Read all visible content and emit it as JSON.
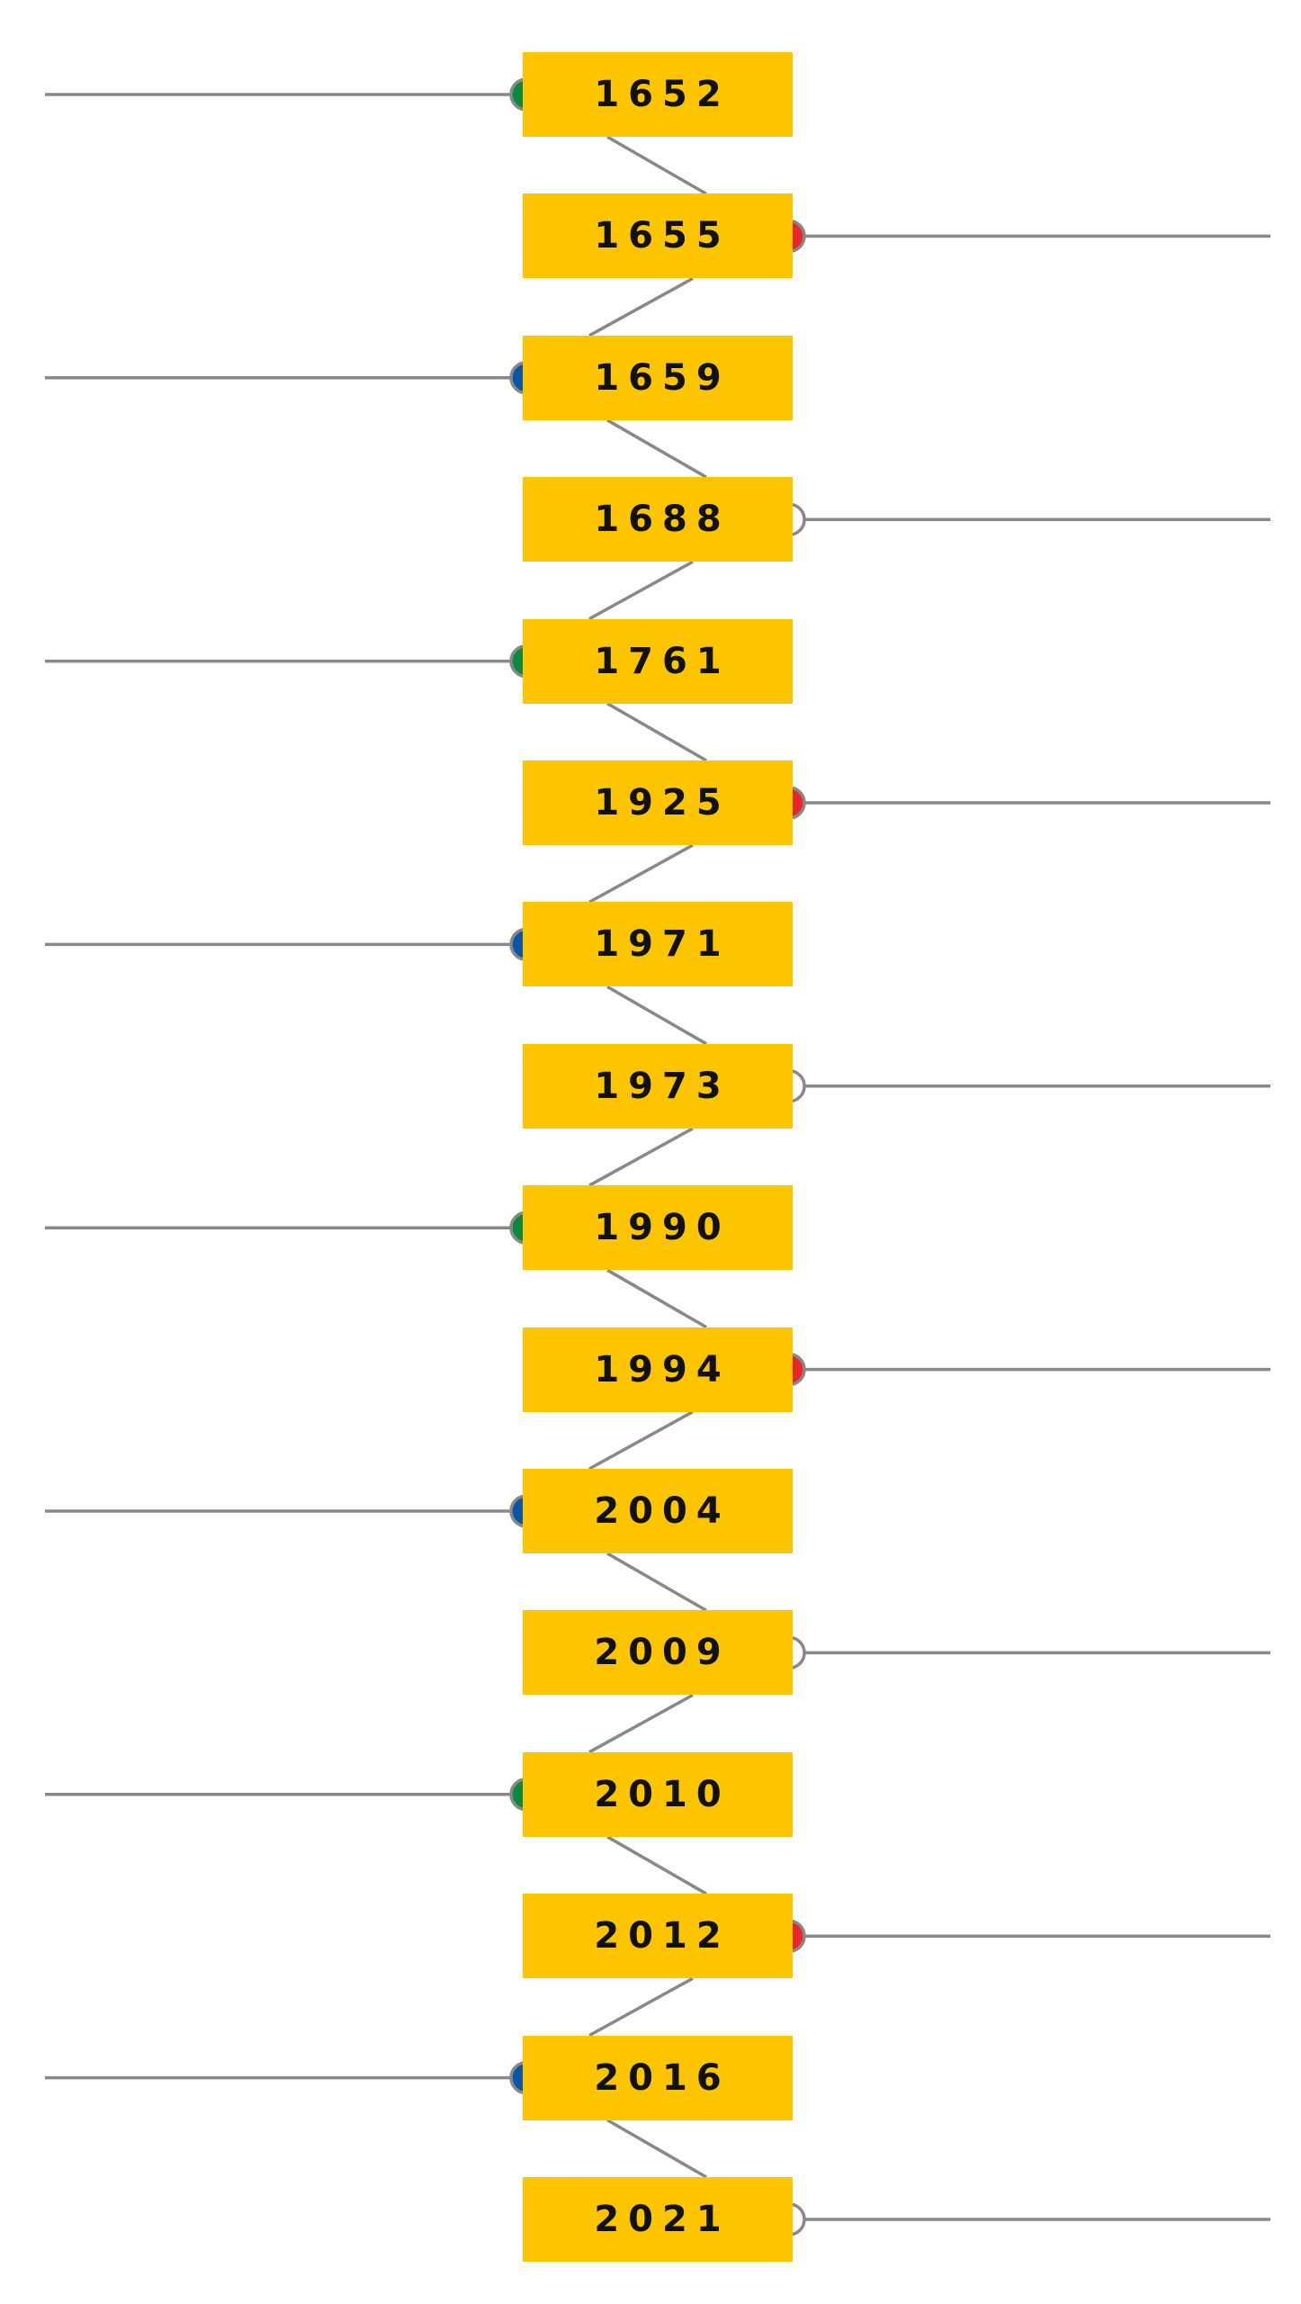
{
  "timeline": {
    "colors": {
      "box": "#fdc500",
      "line": "#888888",
      "text": "#111111"
    },
    "events": [
      {
        "year": "1652",
        "side": "left",
        "marker": "#0a8a3c"
      },
      {
        "year": "1655",
        "side": "right",
        "marker": "#e8262d"
      },
      {
        "year": "1659",
        "side": "left",
        "marker": "#0b55a6"
      },
      {
        "year": "1688",
        "side": "right",
        "marker": "#ffffff"
      },
      {
        "year": "1761",
        "side": "left",
        "marker": "#0a8a3c"
      },
      {
        "year": "1925",
        "side": "right",
        "marker": "#e8262d"
      },
      {
        "year": "1971",
        "side": "left",
        "marker": "#0b55a6"
      },
      {
        "year": "1973",
        "side": "right",
        "marker": "#ffffff"
      },
      {
        "year": "1990",
        "side": "left",
        "marker": "#0a8a3c"
      },
      {
        "year": "1994",
        "side": "right",
        "marker": "#e8262d"
      },
      {
        "year": "2004",
        "side": "left",
        "marker": "#0b55a6"
      },
      {
        "year": "2009",
        "side": "right",
        "marker": "#ffffff"
      },
      {
        "year": "2010",
        "side": "left",
        "marker": "#0a8a3c"
      },
      {
        "year": "2012",
        "side": "right",
        "marker": "#e8262d"
      },
      {
        "year": "2016",
        "side": "left",
        "marker": "#0b55a6"
      },
      {
        "year": "2021",
        "side": "right",
        "marker": "#ffffff"
      }
    ]
  }
}
